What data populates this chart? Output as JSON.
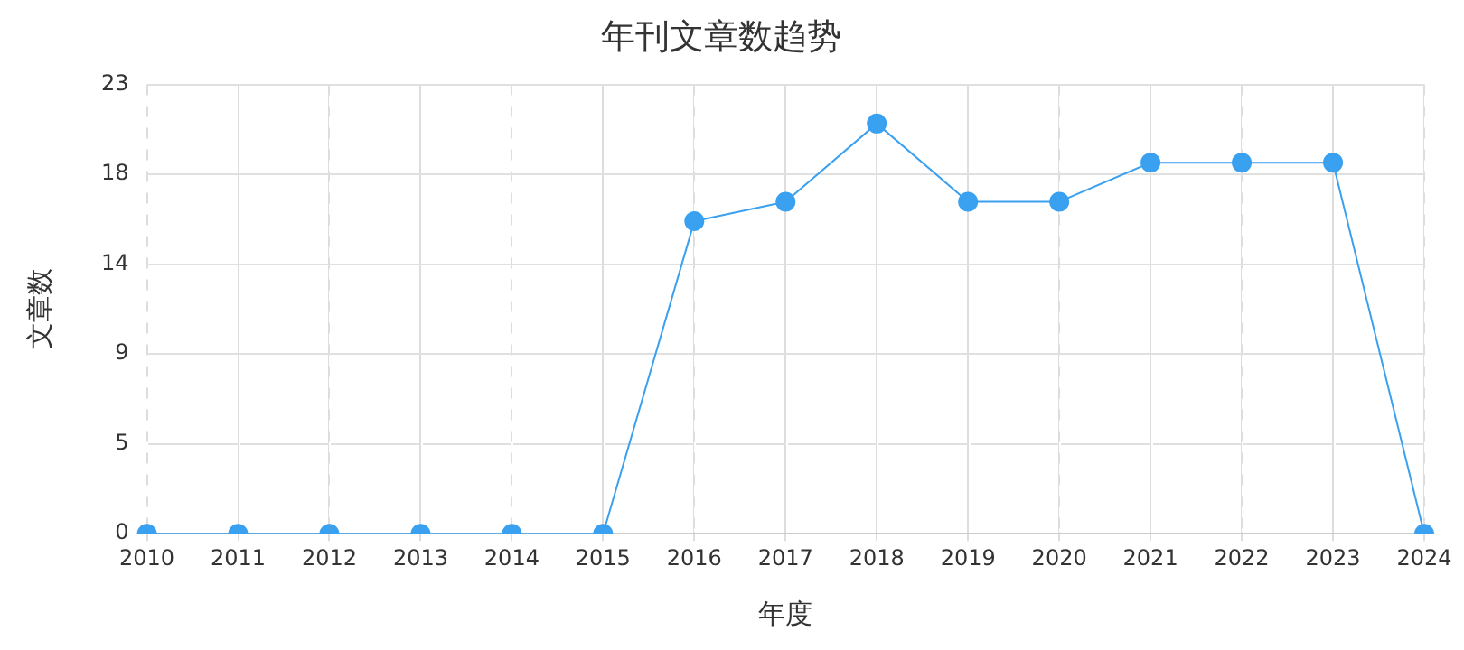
{
  "chart_data": {
    "type": "line",
    "title": "年刊文章数趋势",
    "xlabel": "年度",
    "ylabel": "文章数",
    "categories": [
      "2010",
      "2011",
      "2012",
      "2013",
      "2014",
      "2015",
      "2016",
      "2017",
      "2018",
      "2019",
      "2020",
      "2021",
      "2022",
      "2023",
      "2024"
    ],
    "series": [
      {
        "color": "#3aa0f0",
        "values": [
          0,
          0,
          0,
          0,
          0,
          0,
          16,
          17,
          21,
          17,
          17,
          19,
          19,
          19,
          0
        ]
      }
    ],
    "ylim": [
      0,
      23
    ],
    "yticks": [
      0,
      {
        "value": 4.6,
        "label": "5"
      },
      {
        "value": 9.2,
        "label": "9"
      },
      {
        "value": 13.8,
        "label": "14"
      },
      {
        "value": 18.4,
        "label": "18"
      },
      23
    ],
    "grid": true,
    "marker": "circle",
    "line_style": "solid",
    "legend": false
  }
}
